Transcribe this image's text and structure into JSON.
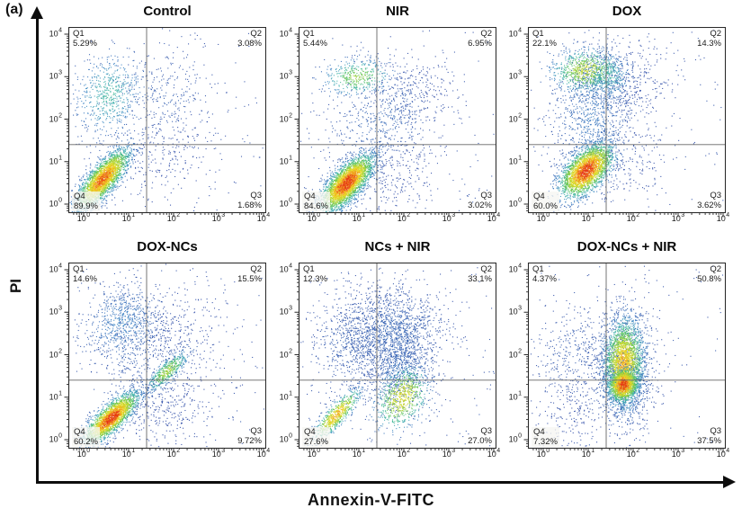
{
  "figure": {
    "panel_label": "(a)",
    "x_axis_label": "Annexin-V-FITC",
    "y_axis_label": "PI"
  },
  "chart_data": {
    "type": "scatter",
    "subtype": "flow-cytometry-density-plots",
    "x_scale": "log",
    "y_scale": "log",
    "x_range": [
      1,
      10000
    ],
    "y_range": [
      1,
      10000
    ],
    "tick_exponents": [
      "0",
      "1",
      "2",
      "3",
      "4"
    ],
    "gate_x_log": 1.4,
    "gate_y_log": 1.4,
    "density_colormap": [
      "#2f4da7",
      "#3c81c5",
      "#40b4ad",
      "#5ac45a",
      "#b4d430",
      "#eede26",
      "#f3961c",
      "#e43015"
    ],
    "panels": [
      {
        "title": "Control",
        "seed": 11,
        "noise": 130,
        "quadrants": {
          "q1": {
            "label": "Q1",
            "value": "5.29%"
          },
          "q2": {
            "label": "Q2",
            "value": "3.08%"
          },
          "q3": {
            "label": "Q3",
            "value": "1.68%"
          },
          "q4": {
            "label": "Q4",
            "value": "89.9%"
          }
        },
        "clusters": [
          {
            "cx": 1.9,
            "cy": 2.5,
            "sx": 0.5,
            "sy": 0.55,
            "rho": 0.0,
            "n": 260,
            "heat": 0.05
          },
          {
            "cx": 1.75,
            "cy": 1.1,
            "sx": 0.55,
            "sy": 0.5,
            "rho": 0.2,
            "n": 200,
            "heat": 0.0
          },
          {
            "cx": 0.55,
            "cy": 2.6,
            "sx": 0.4,
            "sy": 0.5,
            "rho": 0.1,
            "n": 620,
            "heat": 0.3
          },
          {
            "cx": 0.42,
            "cy": 0.6,
            "sx": 0.3,
            "sy": 0.36,
            "rho": 0.78,
            "n": 2600,
            "heat": 0.92
          }
        ]
      },
      {
        "title": "NIR",
        "seed": 22,
        "noise": 140,
        "quadrants": {
          "q1": {
            "label": "Q1",
            "value": "5.44%"
          },
          "q2": {
            "label": "Q2",
            "value": "6.95%"
          },
          "q3": {
            "label": "Q3",
            "value": "3.02%"
          },
          "q4": {
            "label": "Q4",
            "value": "84.6%"
          }
        },
        "clusters": [
          {
            "cx": 2.2,
            "cy": 2.7,
            "sx": 0.55,
            "sy": 0.5,
            "rho": 0.0,
            "n": 220,
            "heat": 0.0
          },
          {
            "cx": 1.5,
            "cy": 1.95,
            "sx": 0.6,
            "sy": 0.55,
            "rho": 0.3,
            "n": 480,
            "heat": 0.08
          },
          {
            "cx": 0.95,
            "cy": 3.0,
            "sx": 0.38,
            "sy": 0.22,
            "rho": 0.1,
            "n": 420,
            "heat": 0.5
          },
          {
            "cx": 1.8,
            "cy": 0.65,
            "sx": 0.5,
            "sy": 0.5,
            "rho": 0.2,
            "n": 230,
            "heat": 0.0
          },
          {
            "cx": 0.72,
            "cy": 0.5,
            "sx": 0.3,
            "sy": 0.34,
            "rho": 0.72,
            "n": 3200,
            "heat": 1.0
          }
        ]
      },
      {
        "title": "DOX",
        "seed": 33,
        "noise": 120,
        "quadrants": {
          "q1": {
            "label": "Q1",
            "value": "22.1%"
          },
          "q2": {
            "label": "Q2",
            "value": "14.3%"
          },
          "q3": {
            "label": "Q3",
            "value": "3.62%"
          },
          "q4": {
            "label": "Q4",
            "value": "60.0%"
          }
        },
        "clusters": [
          {
            "cx": 1.85,
            "cy": 2.85,
            "sx": 0.5,
            "sy": 0.5,
            "rho": 0.0,
            "n": 320,
            "heat": 0.0
          },
          {
            "cx": 1.1,
            "cy": 2.1,
            "sx": 0.45,
            "sy": 0.75,
            "rho": 0.05,
            "n": 850,
            "heat": 0.12
          },
          {
            "cx": 0.95,
            "cy": 3.15,
            "sx": 0.4,
            "sy": 0.26,
            "rho": 0.05,
            "n": 800,
            "heat": 0.6
          },
          {
            "cx": 1.4,
            "cy": 3.0,
            "sx": 0.3,
            "sy": 0.3,
            "rho": 0.0,
            "n": 350,
            "heat": 0.3
          },
          {
            "cx": 1.9,
            "cy": 0.9,
            "sx": 0.5,
            "sy": 0.45,
            "rho": 0.1,
            "n": 170,
            "heat": 0.0
          },
          {
            "cx": 0.95,
            "cy": 0.8,
            "sx": 0.3,
            "sy": 0.32,
            "rho": 0.55,
            "n": 2600,
            "heat": 1.0
          }
        ]
      },
      {
        "title": "DOX-NCs",
        "seed": 44,
        "noise": 140,
        "quadrants": {
          "q1": {
            "label": "Q1",
            "value": "14.6%"
          },
          "q2": {
            "label": "Q2",
            "value": "15.5%"
          },
          "q3": {
            "label": "Q3",
            "value": "9.72%"
          },
          "q4": {
            "label": "Q4",
            "value": "60.2%"
          }
        },
        "clusters": [
          {
            "cx": 2.1,
            "cy": 2.55,
            "sx": 0.55,
            "sy": 0.6,
            "rho": 0.0,
            "n": 260,
            "heat": 0.0
          },
          {
            "cx": 0.85,
            "cy": 2.75,
            "sx": 0.45,
            "sy": 0.45,
            "rho": 0.1,
            "n": 720,
            "heat": 0.15
          },
          {
            "cx": 1.3,
            "cy": 1.9,
            "sx": 0.45,
            "sy": 0.6,
            "rho": 0.1,
            "n": 300,
            "heat": 0.05
          },
          {
            "cx": 1.85,
            "cy": 1.62,
            "sx": 0.24,
            "sy": 0.24,
            "rho": 0.8,
            "n": 450,
            "heat": 0.55
          },
          {
            "cx": 1.95,
            "cy": 0.7,
            "sx": 0.55,
            "sy": 0.5,
            "rho": 0.15,
            "n": 300,
            "heat": 0.0
          },
          {
            "cx": 0.6,
            "cy": 0.52,
            "sx": 0.3,
            "sy": 0.3,
            "rho": 0.78,
            "n": 2300,
            "heat": 1.0
          }
        ]
      },
      {
        "title": "NCs + NIR",
        "seed": 55,
        "noise": 170,
        "quadrants": {
          "q1": {
            "label": "Q1",
            "value": "12.3%"
          },
          "q2": {
            "label": "Q2",
            "value": "33.1%"
          },
          "q3": {
            "label": "Q3",
            "value": "27.0%"
          },
          "q4": {
            "label": "Q4",
            "value": "27.6%"
          }
        },
        "clusters": [
          {
            "cx": 1.75,
            "cy": 2.5,
            "sx": 0.55,
            "sy": 0.55,
            "rho": 0.0,
            "n": 1500,
            "heat": 0.07
          },
          {
            "cx": 0.75,
            "cy": 2.3,
            "sx": 0.45,
            "sy": 0.6,
            "rho": 0.0,
            "n": 520,
            "heat": 0.05
          },
          {
            "cx": 1.9,
            "cy": 1.55,
            "sx": 0.35,
            "sy": 0.45,
            "rho": 0.1,
            "n": 520,
            "heat": 0.1
          },
          {
            "cx": 0.5,
            "cy": 0.6,
            "sx": 0.26,
            "sy": 0.3,
            "rho": 0.85,
            "n": 650,
            "heat": 0.8
          },
          {
            "cx": 1.95,
            "cy": 1.0,
            "sx": 0.3,
            "sy": 0.38,
            "rho": 0.3,
            "n": 700,
            "heat": 0.68
          }
        ]
      },
      {
        "title": "DOX-NCs + NIR",
        "seed": 66,
        "noise": 120,
        "quadrants": {
          "q1": {
            "label": "Q1",
            "value": "4.37%"
          },
          "q2": {
            "label": "Q2",
            "value": "50.8%"
          },
          "q3": {
            "label": "Q3",
            "value": "37.5%"
          },
          "q4": {
            "label": "Q4",
            "value": "7.32%"
          }
        },
        "clusters": [
          {
            "cx": 0.72,
            "cy": 2.05,
            "sx": 0.5,
            "sy": 0.58,
            "rho": 0.0,
            "n": 380,
            "heat": 0.04
          },
          {
            "cx": 0.55,
            "cy": 0.5,
            "sx": 0.45,
            "sy": 0.42,
            "rho": 0.3,
            "n": 170,
            "heat": 0.0
          },
          {
            "cx": 1.8,
            "cy": 1.7,
            "sx": 0.38,
            "sy": 0.78,
            "rho": 0.0,
            "n": 800,
            "heat": 0.06
          },
          {
            "cx": 1.78,
            "cy": 1.8,
            "sx": 0.22,
            "sy": 0.52,
            "rho": 0.05,
            "n": 2400,
            "heat": 0.8
          },
          {
            "cx": 1.77,
            "cy": 1.3,
            "sx": 0.17,
            "sy": 0.2,
            "rho": 0.1,
            "n": 1300,
            "heat": 1.0
          }
        ]
      }
    ]
  }
}
